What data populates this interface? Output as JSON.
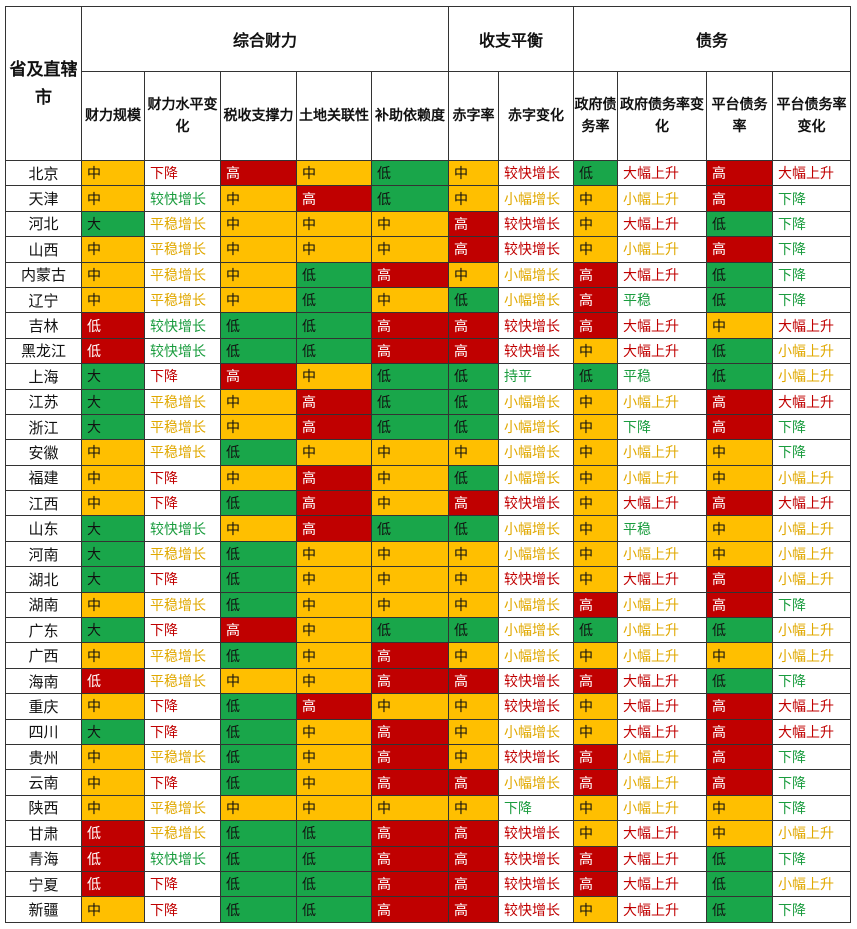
{
  "header": {
    "province": "省及直辖市",
    "groups": [
      "综合财力",
      "收支平衡",
      "债务"
    ],
    "columns": [
      "财力规模",
      "财力水平变化",
      "税收支撑力",
      "土地关联性",
      "补助依赖度",
      "赤字率",
      "赤字变化",
      "政府债务率",
      "政府债务率变化",
      "平台债务率",
      "平台债务率变化"
    ]
  },
  "colors": {
    "high_bg": "#c00000",
    "mid_bg": "#ffbf00",
    "low_bg": "#19a64a",
    "red_text": "#c00000",
    "green_text": "#1a9c3e",
    "yellow_text": "#e0a800"
  },
  "rows": [
    {
      "name": "北京",
      "cells": [
        "中",
        "下降",
        "高",
        "中",
        "低",
        "中",
        "较快增长",
        "低",
        "大幅上升",
        "高",
        "大幅上升"
      ]
    },
    {
      "name": "天津",
      "cells": [
        "中",
        "较快增长",
        "中",
        "高",
        "低",
        "中",
        "小幅增长",
        "中",
        "小幅上升",
        "高",
        "下降"
      ]
    },
    {
      "name": "河北",
      "cells": [
        "大",
        "平稳增长",
        "中",
        "中",
        "中",
        "高",
        "较快增长",
        "中",
        "大幅上升",
        "低",
        "下降"
      ]
    },
    {
      "name": "山西",
      "cells": [
        "中",
        "平稳增长",
        "中",
        "中",
        "中",
        "高",
        "较快增长",
        "中",
        "小幅上升",
        "高",
        "下降"
      ]
    },
    {
      "name": "内蒙古",
      "cells": [
        "中",
        "平稳增长",
        "中",
        "低",
        "高",
        "中",
        "小幅增长",
        "高",
        "大幅上升",
        "低",
        "下降"
      ]
    },
    {
      "name": "辽宁",
      "cells": [
        "中",
        "平稳增长",
        "中",
        "低",
        "中",
        "低",
        "小幅增长",
        "高",
        "平稳",
        "低",
        "下降"
      ]
    },
    {
      "name": "吉林",
      "cells": [
        "低",
        "较快增长",
        "低",
        "低",
        "高",
        "高",
        "较快增长",
        "高",
        "大幅上升",
        "中",
        "大幅上升"
      ]
    },
    {
      "name": "黑龙江",
      "cells": [
        "低",
        "较快增长",
        "低",
        "低",
        "高",
        "高",
        "较快增长",
        "中",
        "大幅上升",
        "低",
        "小幅上升"
      ]
    },
    {
      "name": "上海",
      "cells": [
        "大",
        "下降",
        "高",
        "中",
        "低",
        "低",
        "持平",
        "低",
        "平稳",
        "低",
        "小幅上升"
      ]
    },
    {
      "name": "江苏",
      "cells": [
        "大",
        "平稳增长",
        "中",
        "高",
        "低",
        "低",
        "小幅增长",
        "中",
        "小幅上升",
        "高",
        "大幅上升"
      ]
    },
    {
      "name": "浙江",
      "cells": [
        "大",
        "平稳增长",
        "中",
        "高",
        "低",
        "低",
        "小幅增长",
        "中",
        "下降",
        "高",
        "下降"
      ]
    },
    {
      "name": "安徽",
      "cells": [
        "中",
        "平稳增长",
        "低",
        "中",
        "中",
        "中",
        "小幅增长",
        "中",
        "小幅上升",
        "中",
        "下降"
      ]
    },
    {
      "name": "福建",
      "cells": [
        "中",
        "下降",
        "中",
        "高",
        "中",
        "低",
        "小幅增长",
        "中",
        "小幅上升",
        "中",
        "小幅上升"
      ]
    },
    {
      "name": "江西",
      "cells": [
        "中",
        "下降",
        "低",
        "高",
        "中",
        "高",
        "较快增长",
        "中",
        "大幅上升",
        "高",
        "大幅上升"
      ]
    },
    {
      "name": "山东",
      "cells": [
        "大",
        "较快增长",
        "中",
        "高",
        "低",
        "低",
        "小幅增长",
        "中",
        "平稳",
        "中",
        "小幅上升"
      ]
    },
    {
      "name": "河南",
      "cells": [
        "大",
        "平稳增长",
        "低",
        "中",
        "中",
        "中",
        "小幅增长",
        "中",
        "小幅上升",
        "中",
        "小幅上升"
      ]
    },
    {
      "name": "湖北",
      "cells": [
        "大",
        "下降",
        "低",
        "中",
        "中",
        "中",
        "较快增长",
        "中",
        "大幅上升",
        "高",
        "小幅上升"
      ]
    },
    {
      "name": "湖南",
      "cells": [
        "中",
        "平稳增长",
        "低",
        "中",
        "中",
        "中",
        "小幅增长",
        "高",
        "小幅上升",
        "高",
        "下降"
      ]
    },
    {
      "name": "广东",
      "cells": [
        "大",
        "下降",
        "高",
        "中",
        "低",
        "低",
        "小幅增长",
        "低",
        "小幅上升",
        "低",
        "小幅上升"
      ]
    },
    {
      "name": "广西",
      "cells": [
        "中",
        "平稳增长",
        "低",
        "中",
        "高",
        "中",
        "小幅增长",
        "中",
        "小幅上升",
        "中",
        "小幅上升"
      ]
    },
    {
      "name": "海南",
      "cells": [
        "低",
        "平稳增长",
        "中",
        "中",
        "高",
        "高",
        "较快增长",
        "高",
        "大幅上升",
        "低",
        "下降"
      ]
    },
    {
      "name": "重庆",
      "cells": [
        "中",
        "下降",
        "低",
        "高",
        "中",
        "中",
        "较快增长",
        "中",
        "大幅上升",
        "高",
        "大幅上升"
      ]
    },
    {
      "name": "四川",
      "cells": [
        "大",
        "下降",
        "低",
        "中",
        "高",
        "中",
        "小幅增长",
        "中",
        "大幅上升",
        "高",
        "大幅上升"
      ]
    },
    {
      "name": "贵州",
      "cells": [
        "中",
        "平稳增长",
        "低",
        "中",
        "高",
        "中",
        "较快增长",
        "高",
        "小幅上升",
        "高",
        "下降"
      ]
    },
    {
      "name": "云南",
      "cells": [
        "中",
        "下降",
        "低",
        "中",
        "高",
        "高",
        "小幅增长",
        "高",
        "小幅上升",
        "高",
        "下降"
      ]
    },
    {
      "name": "陕西",
      "cells": [
        "中",
        "平稳增长",
        "中",
        "中",
        "中",
        "中",
        "下降",
        "中",
        "小幅上升",
        "中",
        "下降"
      ]
    },
    {
      "name": "甘肃",
      "cells": [
        "低",
        "平稳增长",
        "低",
        "低",
        "高",
        "高",
        "较快增长",
        "中",
        "大幅上升",
        "中",
        "小幅上升"
      ]
    },
    {
      "name": "青海",
      "cells": [
        "低",
        "较快增长",
        "低",
        "低",
        "高",
        "高",
        "较快增长",
        "高",
        "大幅上升",
        "低",
        "下降"
      ]
    },
    {
      "name": "宁夏",
      "cells": [
        "低",
        "下降",
        "低",
        "低",
        "高",
        "高",
        "较快增长",
        "高",
        "大幅上升",
        "低",
        "小幅上升"
      ]
    },
    {
      "name": "新疆",
      "cells": [
        "中",
        "下降",
        "低",
        "低",
        "高",
        "高",
        "较快增长",
        "中",
        "大幅上升",
        "低",
        "下降"
      ]
    }
  ]
}
